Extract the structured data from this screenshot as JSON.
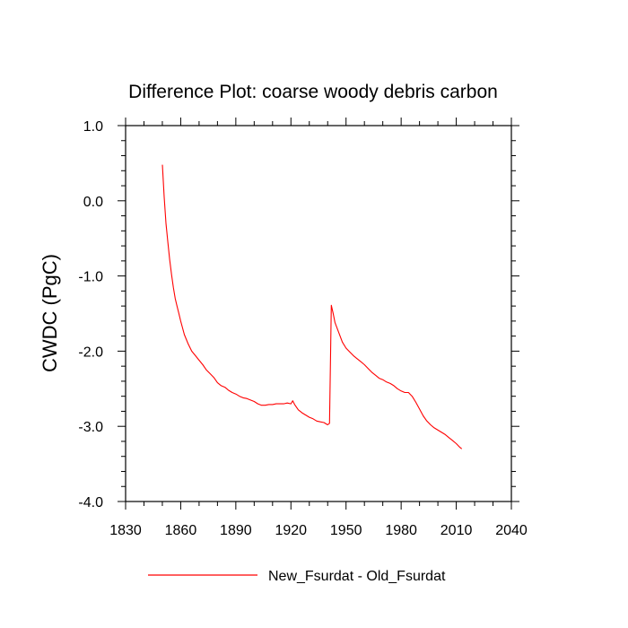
{
  "chart_data": {
    "type": "line",
    "title": "Difference Plot: coarse woody debris carbon",
    "xlabel": "",
    "ylabel": "CWDC  (PgC)",
    "xlim": [
      1830,
      2040
    ],
    "ylim": [
      -4.0,
      1.0
    ],
    "x_ticks": [
      1830,
      1860,
      1890,
      1920,
      1950,
      1980,
      2010,
      2040
    ],
    "y_ticks": [
      1.0,
      0.0,
      -1.0,
      -2.0,
      -3.0,
      -4.0
    ],
    "y_tick_labels": [
      "1.0",
      "0.0",
      "-1.0",
      "-2.0",
      "-3.0",
      "-4.0"
    ],
    "legend": {
      "position": "bottom",
      "entries": [
        "New_Fsurdat - Old_Fsurdat"
      ]
    },
    "series": [
      {
        "name": "New_Fsurdat - Old_Fsurdat",
        "color": "#ff0000",
        "x": [
          1850,
          1851,
          1852,
          1853,
          1854,
          1855,
          1856,
          1857,
          1858,
          1859,
          1860,
          1862,
          1864,
          1866,
          1868,
          1870,
          1872,
          1874,
          1876,
          1878,
          1880,
          1882,
          1884,
          1886,
          1888,
          1890,
          1892,
          1894,
          1896,
          1898,
          1900,
          1902,
          1904,
          1906,
          1908,
          1910,
          1912,
          1914,
          1916,
          1918,
          1920,
          1921,
          1922,
          1924,
          1926,
          1928,
          1930,
          1932,
          1934,
          1936,
          1938,
          1940,
          1941,
          1942,
          1943,
          1944,
          1946,
          1948,
          1950,
          1952,
          1954,
          1956,
          1958,
          1960,
          1962,
          1964,
          1966,
          1968,
          1970,
          1972,
          1974,
          1976,
          1978,
          1980,
          1982,
          1984,
          1986,
          1988,
          1990,
          1992,
          1994,
          1996,
          1998,
          2000,
          2002,
          2004,
          2006,
          2008,
          2010,
          2012,
          2013
        ],
        "y": [
          0.48,
          0.05,
          -0.3,
          -0.55,
          -0.78,
          -0.98,
          -1.15,
          -1.3,
          -1.4,
          -1.5,
          -1.6,
          -1.78,
          -1.9,
          -2.0,
          -2.06,
          -2.12,
          -2.18,
          -2.25,
          -2.3,
          -2.35,
          -2.42,
          -2.46,
          -2.48,
          -2.52,
          -2.55,
          -2.57,
          -2.6,
          -2.62,
          -2.63,
          -2.65,
          -2.67,
          -2.7,
          -2.72,
          -2.72,
          -2.71,
          -2.71,
          -2.7,
          -2.7,
          -2.7,
          -2.69,
          -2.7,
          -2.66,
          -2.71,
          -2.78,
          -2.82,
          -2.85,
          -2.88,
          -2.9,
          -2.93,
          -2.94,
          -2.95,
          -2.98,
          -2.96,
          -1.39,
          -1.5,
          -1.62,
          -1.75,
          -1.88,
          -1.96,
          -2.01,
          -2.06,
          -2.1,
          -2.14,
          -2.18,
          -2.23,
          -2.28,
          -2.32,
          -2.36,
          -2.38,
          -2.41,
          -2.43,
          -2.46,
          -2.5,
          -2.53,
          -2.55,
          -2.55,
          -2.6,
          -2.68,
          -2.77,
          -2.86,
          -2.93,
          -2.98,
          -3.02,
          -3.05,
          -3.08,
          -3.11,
          -3.15,
          -3.19,
          -3.23,
          -3.28,
          -3.3
        ]
      }
    ]
  }
}
